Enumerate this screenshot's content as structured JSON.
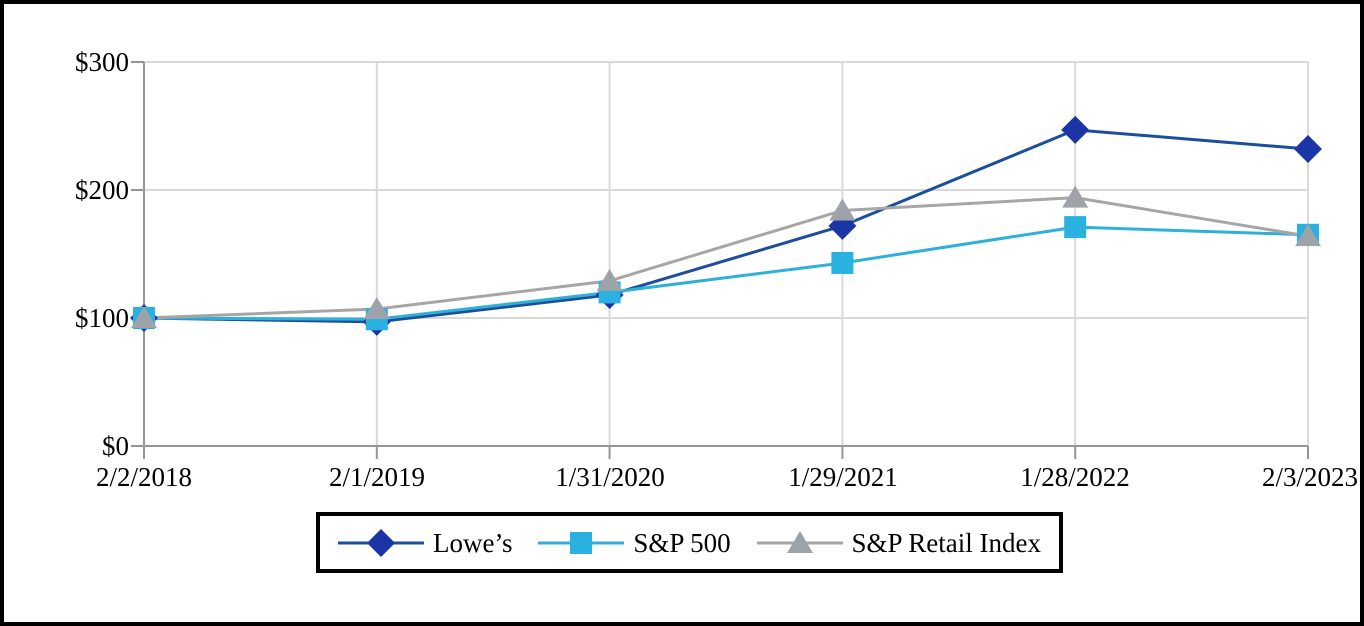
{
  "figure": {
    "kind": "total-shareholder-return-performance-graph"
  },
  "chart_data": {
    "type": "line",
    "title": "",
    "xlabel": "",
    "ylabel": "",
    "categories": [
      "2/2/2018",
      "2/1/2019",
      "1/31/2020",
      "1/29/2021",
      "1/28/2022",
      "2/3/2023"
    ],
    "series": [
      {
        "name": "Lowe’s",
        "marker": "diamond",
        "line_color": "#1B4F9E",
        "marker_color": "#1C35A6",
        "values": [
          100,
          97,
          118,
          172,
          247,
          232
        ]
      },
      {
        "name": "S&P 500",
        "marker": "square",
        "line_color": "#2FB0D9",
        "marker_color": "#29B2E0",
        "values": [
          100,
          99,
          120,
          143,
          171,
          165
        ]
      },
      {
        "name": "S&P Retail Index",
        "marker": "triangle",
        "line_color": "#A6A6A6",
        "marker_color": "#9EA3A9",
        "values": [
          100,
          107,
          129,
          184,
          194,
          164
        ]
      }
    ],
    "ylim": [
      0,
      300
    ],
    "ytick_labels": [
      "$300",
      "$200",
      "$100",
      "$0"
    ],
    "ytick_values": [
      300,
      200,
      100,
      0
    ],
    "grid": true,
    "legend_position": "bottom",
    "colors": {
      "gridline": "#D9D9D9",
      "axis": "#969696",
      "text": "#000000",
      "border": "#000000",
      "background": "#FFFFFF"
    }
  }
}
